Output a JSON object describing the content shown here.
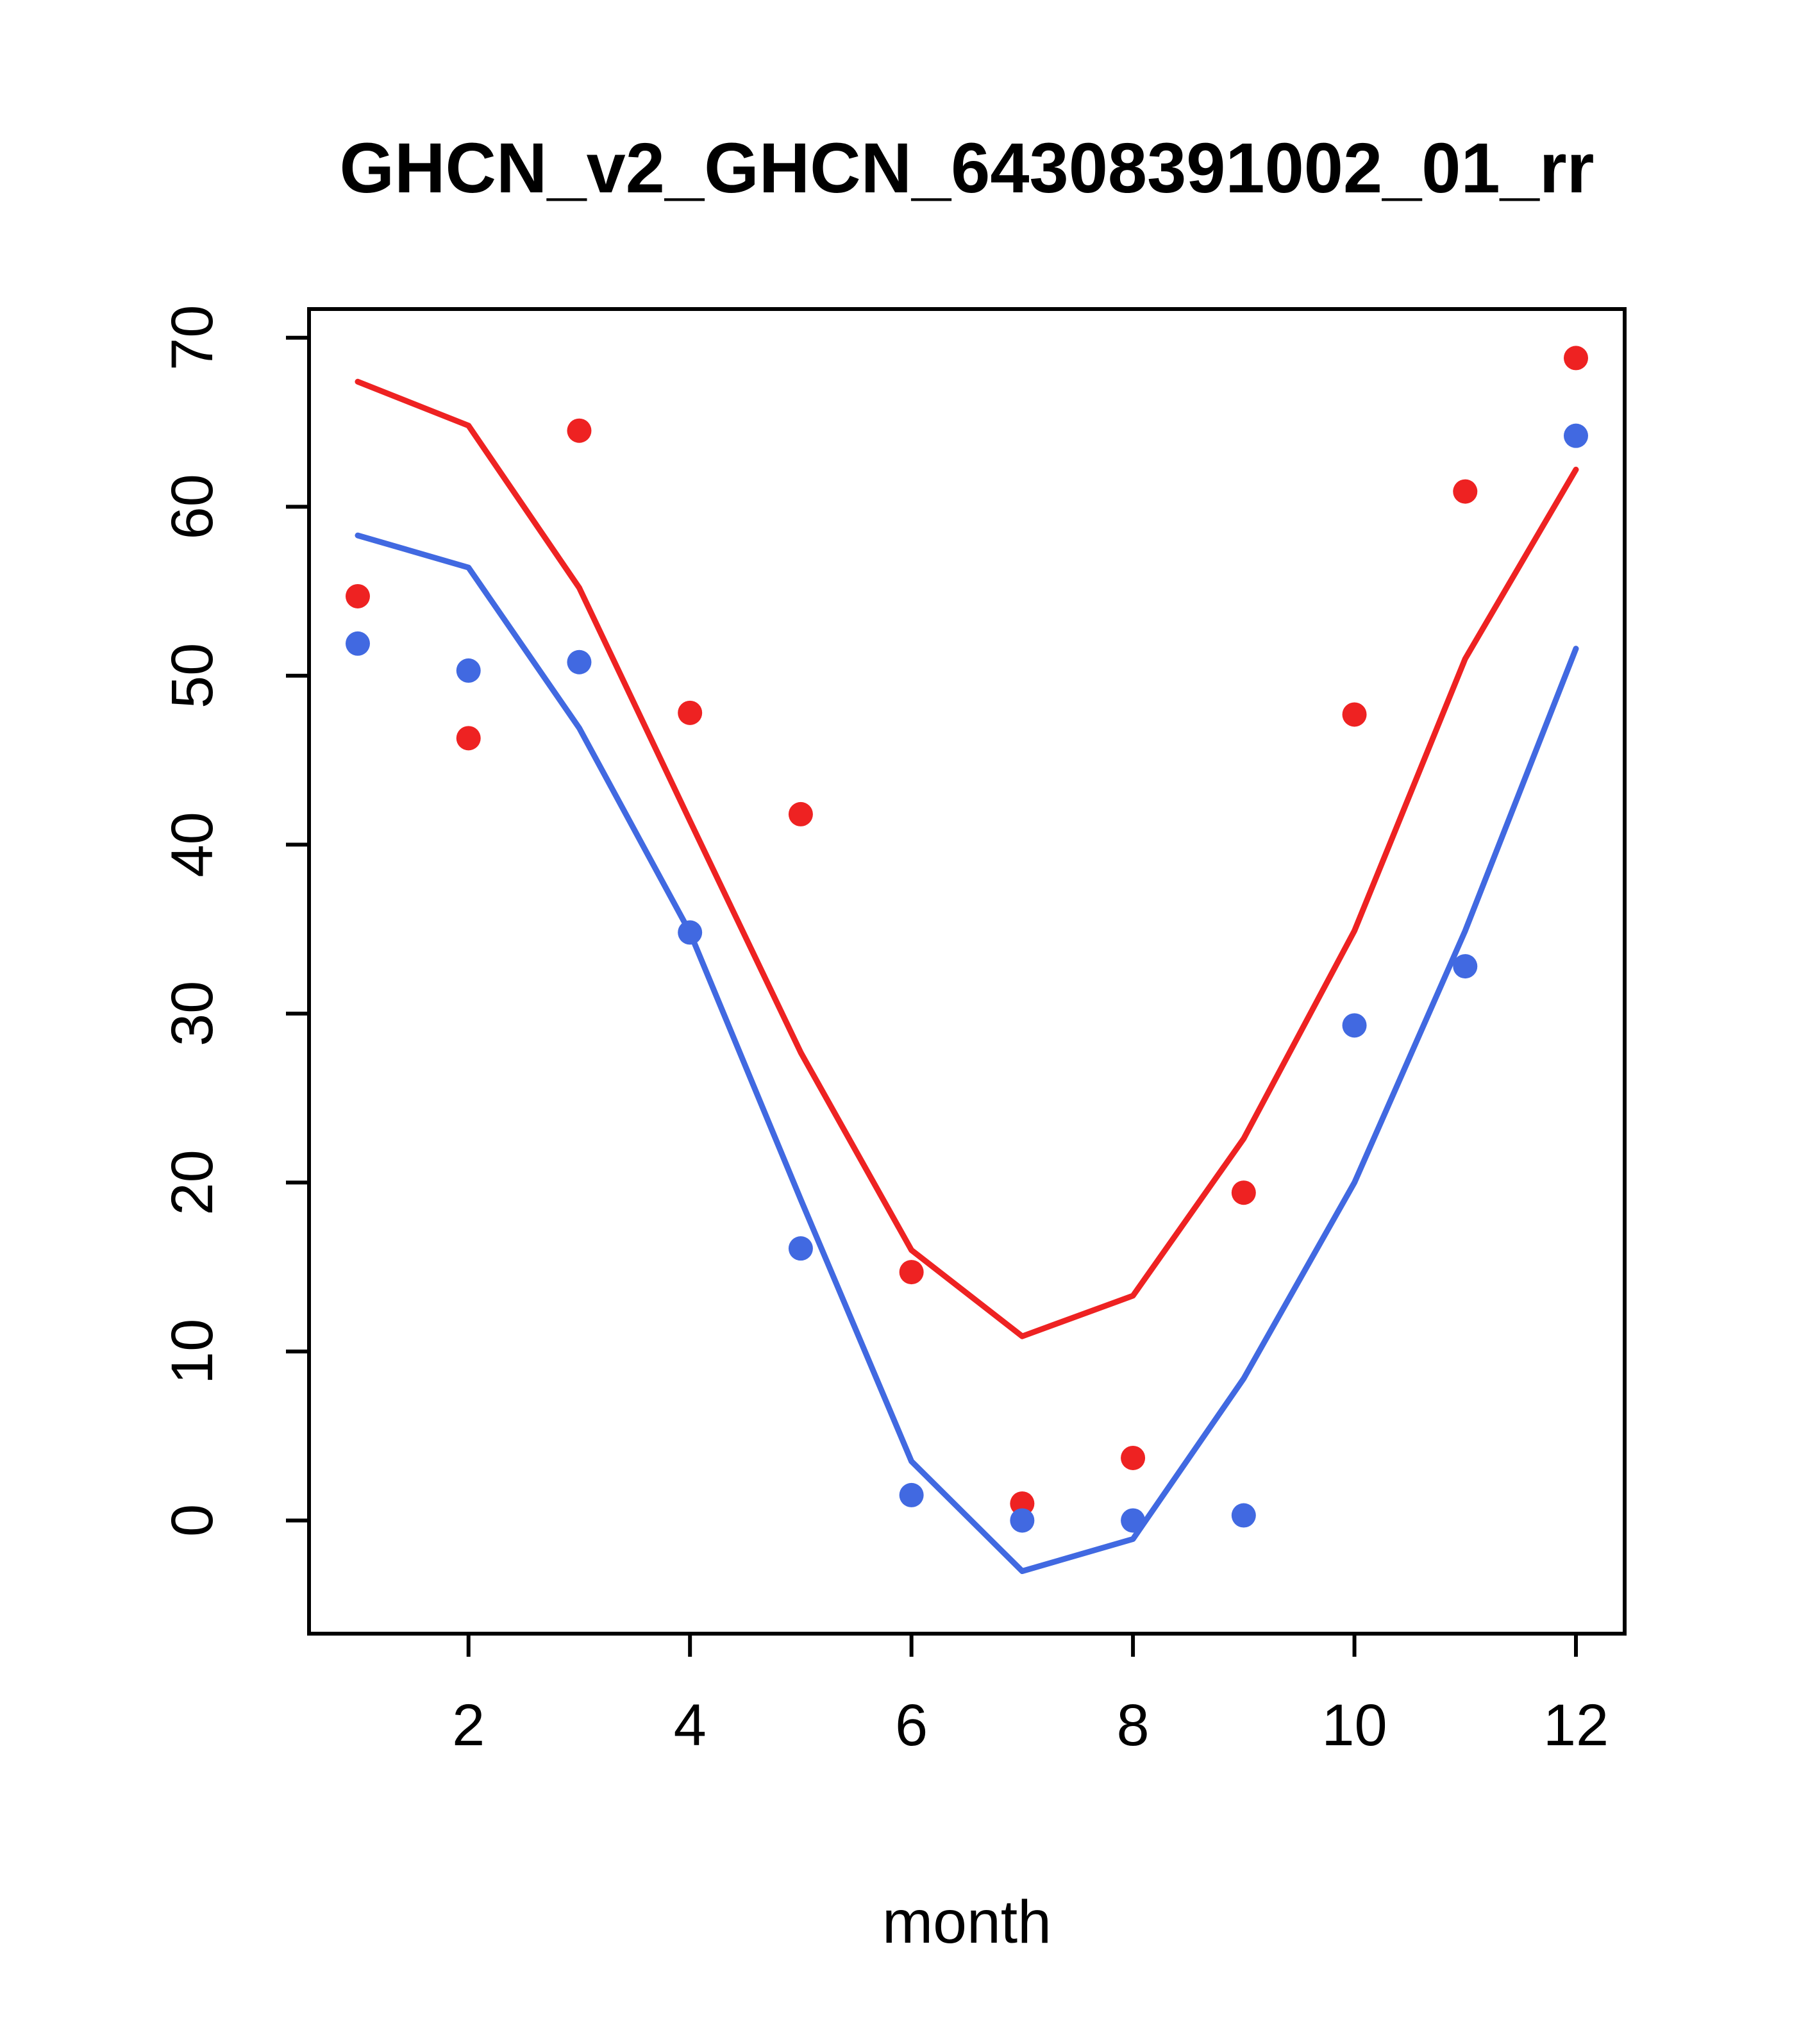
{
  "page": {
    "background_color": "#ffffff"
  },
  "chart_data": {
    "type": "line",
    "title": "GHCN_v2_GHCN_64308391002_01_rr",
    "xlabel": "month",
    "ylabel": "",
    "x": [
      1,
      2,
      3,
      4,
      5,
      6,
      7,
      8,
      9,
      10,
      11,
      12
    ],
    "xlim": [
      0.56,
      12.44
    ],
    "ylim": [
      -6.7,
      71.7
    ],
    "xticks": [
      2,
      4,
      6,
      8,
      10,
      12
    ],
    "yticks": [
      0,
      10,
      20,
      30,
      40,
      50,
      60,
      70
    ],
    "grid": false,
    "legend": "none",
    "box": true,
    "colors": {
      "red": "#ee2222",
      "blue": "#4169e1",
      "axis": "#000000"
    },
    "series": [
      {
        "name": "red-line",
        "kind": "line",
        "color": "#ee2222",
        "values": [
          67.4,
          64.8,
          55.2,
          41.4,
          27.7,
          16.0,
          10.9,
          13.3,
          22.6,
          34.9,
          51.0,
          62.2
        ]
      },
      {
        "name": "blue-line",
        "kind": "line",
        "color": "#4169e1",
        "values": [
          58.3,
          56.4,
          46.9,
          34.8,
          19.0,
          3.5,
          -3.0,
          -1.1,
          8.4,
          20.0,
          34.9,
          51.6
        ]
      },
      {
        "name": "red-points",
        "kind": "scatter",
        "color": "#ee2222",
        "values": [
          54.7,
          46.3,
          64.5,
          47.8,
          41.8,
          14.7,
          1.0,
          3.7,
          19.4,
          47.7,
          60.9,
          68.8
        ]
      },
      {
        "name": "blue-points",
        "kind": "scatter",
        "color": "#4169e1",
        "values": [
          51.9,
          50.3,
          50.8,
          34.8,
          16.1,
          1.5,
          0.0,
          0.0,
          0.3,
          29.3,
          32.8,
          64.2
        ]
      }
    ]
  }
}
